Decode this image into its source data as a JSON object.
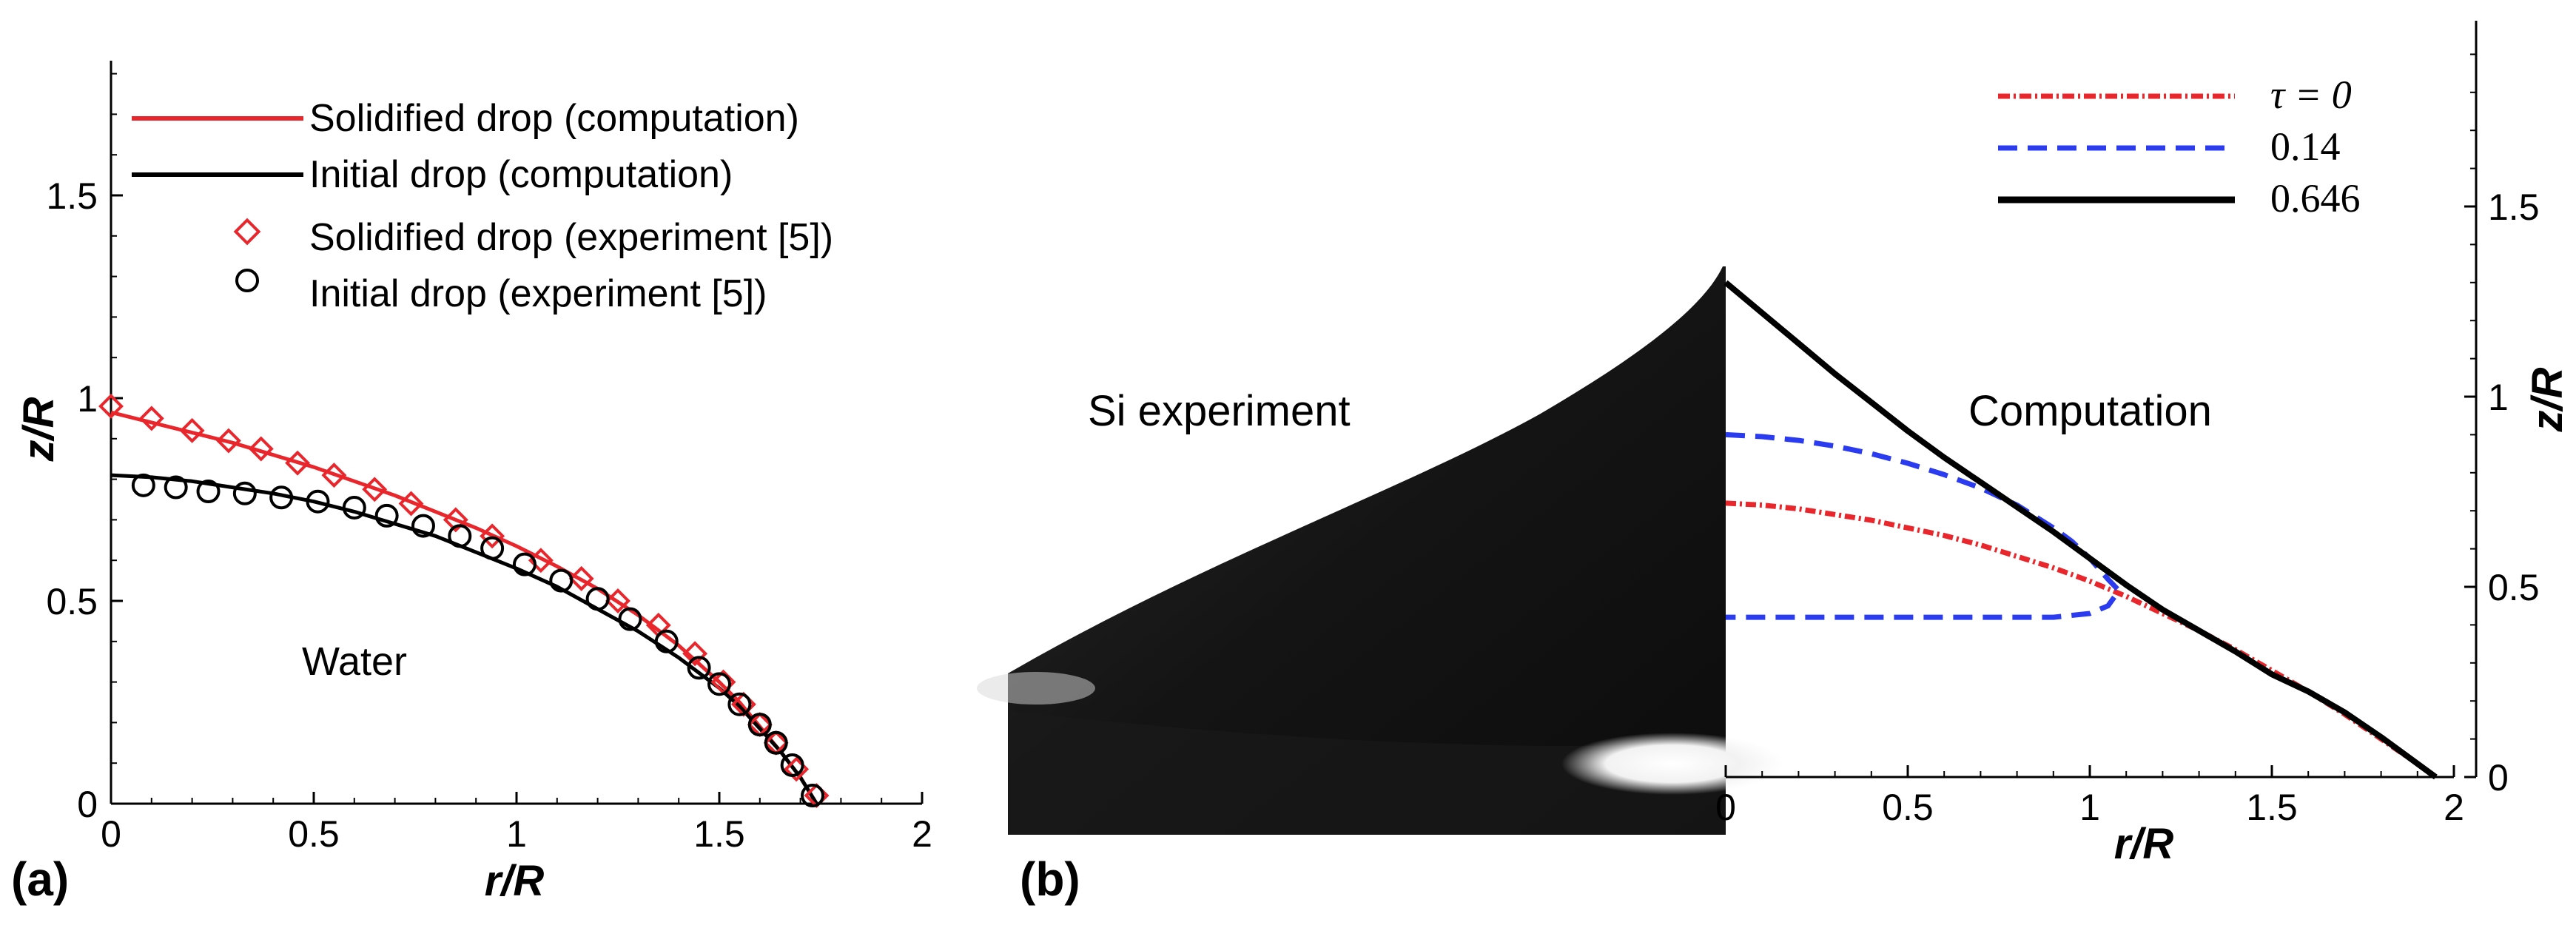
{
  "panels": [
    {
      "id": "a",
      "panel_label": "(a)",
      "annotation": "Water",
      "chart_data": {
        "type": "line",
        "xlabel": "r/R",
        "ylabel": "z/R",
        "xlim": [
          0,
          2
        ],
        "ylim": [
          0,
          1.85
        ],
        "xticks": [
          "0",
          "0.5",
          "1",
          "1.5",
          "2"
        ],
        "yticks": [
          "0",
          "0.5",
          "1",
          "1.5"
        ],
        "legend_position": "top-left",
        "series": [
          {
            "name": "Solidified drop (computation)",
            "style": "solid-line",
            "color": "#e8262b",
            "x": [
              0,
              0.1,
              0.2,
              0.3,
              0.4,
              0.5,
              0.6,
              0.7,
              0.8,
              0.9,
              1.0,
              1.1,
              1.2,
              1.3,
              1.4,
              1.5,
              1.55,
              1.6,
              1.65,
              1.7,
              1.74
            ],
            "y": [
              0.965,
              0.94,
              0.915,
              0.89,
              0.86,
              0.83,
              0.795,
              0.76,
              0.72,
              0.68,
              0.635,
              0.585,
              0.53,
              0.465,
              0.39,
              0.3,
              0.25,
              0.19,
              0.13,
              0.065,
              0
            ]
          },
          {
            "name": "Initial drop (computation)",
            "style": "solid-line",
            "color": "#000000",
            "x": [
              0,
              0.1,
              0.2,
              0.3,
              0.4,
              0.5,
              0.6,
              0.7,
              0.8,
              0.9,
              1.0,
              1.1,
              1.2,
              1.3,
              1.4,
              1.5,
              1.55,
              1.6,
              1.65,
              1.7,
              1.74
            ],
            "y": [
              0.81,
              0.805,
              0.795,
              0.78,
              0.765,
              0.745,
              0.72,
              0.69,
              0.66,
              0.62,
              0.58,
              0.535,
              0.48,
              0.425,
              0.36,
              0.285,
              0.24,
              0.185,
              0.13,
              0.065,
              0
            ]
          },
          {
            "name": "Solidified drop (experiment [5])",
            "style": "diamond-markers",
            "color": "#e8262b",
            "x": [
              0,
              0.1,
              0.2,
              0.29,
              0.37,
              0.46,
              0.55,
              0.65,
              0.74,
              0.85,
              0.94,
              1.06,
              1.16,
              1.25,
              1.35,
              1.44,
              1.51,
              1.56,
              1.6,
              1.64,
              1.69,
              1.74
            ],
            "y": [
              0.98,
              0.95,
              0.92,
              0.895,
              0.875,
              0.84,
              0.81,
              0.775,
              0.74,
              0.7,
              0.66,
              0.6,
              0.555,
              0.5,
              0.44,
              0.37,
              0.3,
              0.245,
              0.195,
              0.15,
              0.085,
              0.02
            ]
          },
          {
            "name": "Initial drop (experiment [5])",
            "style": "circle-markers",
            "color": "#000000",
            "x": [
              0.08,
              0.16,
              0.24,
              0.33,
              0.42,
              0.51,
              0.6,
              0.68,
              0.77,
              0.86,
              0.94,
              1.02,
              1.11,
              1.2,
              1.28,
              1.37,
              1.45,
              1.5,
              1.55,
              1.6,
              1.64,
              1.68,
              1.73
            ],
            "y": [
              0.785,
              0.78,
              0.77,
              0.765,
              0.755,
              0.745,
              0.73,
              0.71,
              0.685,
              0.66,
              0.63,
              0.59,
              0.55,
              0.505,
              0.455,
              0.4,
              0.335,
              0.295,
              0.245,
              0.195,
              0.15,
              0.095,
              0.02
            ]
          }
        ]
      }
    },
    {
      "id": "b",
      "panel_label": "(b)",
      "photo_label": "Si experiment",
      "annotation": "Computation",
      "chart_data": {
        "type": "line",
        "xlabel": "r/R",
        "ylabel": "z/R",
        "xlim": [
          0,
          2
        ],
        "ylim": [
          0,
          1.85
        ],
        "xticks": [
          "0",
          "0.5",
          "1",
          "1.5",
          "2"
        ],
        "yticks": [
          "0",
          "0.5",
          "1",
          "1.5"
        ],
        "legend_position": "top-right",
        "series": [
          {
            "name": "τ = 0",
            "style": "dash-dot",
            "color": "#e8262b",
            "x": [
              0,
              0.1,
              0.2,
              0.3,
              0.4,
              0.5,
              0.6,
              0.7,
              0.8,
              0.9,
              1.0,
              1.1,
              1.2,
              1.3,
              1.4,
              1.5,
              1.6,
              1.7,
              1.8,
              1.9,
              1.95
            ],
            "y": [
              0.72,
              0.715,
              0.705,
              0.69,
              0.675,
              0.655,
              0.635,
              0.61,
              0.58,
              0.55,
              0.515,
              0.475,
              0.43,
              0.385,
              0.335,
              0.28,
              0.225,
              0.165,
              0.1,
              0.035,
              0
            ]
          },
          {
            "name": "0.14",
            "style": "dashed",
            "color": "#2a3bf0",
            "x": [
              0,
              0.1,
              0.2,
              0.3,
              0.4,
              0.5,
              0.6,
              0.7,
              0.8,
              0.9,
              0.95,
              1.0,
              1.05,
              1.08,
              1.05,
              1.0,
              0.9,
              0.7,
              0.5,
              0.3,
              0.1,
              0
            ],
            "y": [
              0.9,
              0.895,
              0.885,
              0.87,
              0.85,
              0.825,
              0.795,
              0.76,
              0.715,
              0.655,
              0.62,
              0.575,
              0.52,
              0.49,
              0.45,
              0.43,
              0.42,
              0.42,
              0.42,
              0.42,
              0.42,
              0.42
            ]
          },
          {
            "name": "0.646",
            "style": "solid",
            "color": "#000000",
            "x": [
              0,
              0.1,
              0.2,
              0.3,
              0.4,
              0.5,
              0.6,
              0.7,
              0.8,
              0.9,
              1.0,
              1.1,
              1.2,
              1.3,
              1.4,
              1.5,
              1.6,
              1.7,
              1.8,
              1.9,
              1.95
            ],
            "y": [
              1.3,
              1.22,
              1.14,
              1.06,
              0.985,
              0.91,
              0.84,
              0.775,
              0.71,
              0.645,
              0.575,
              0.505,
              0.44,
              0.385,
              0.33,
              0.27,
              0.225,
              0.17,
              0.105,
              0.035,
              0
            ]
          }
        ]
      }
    }
  ]
}
